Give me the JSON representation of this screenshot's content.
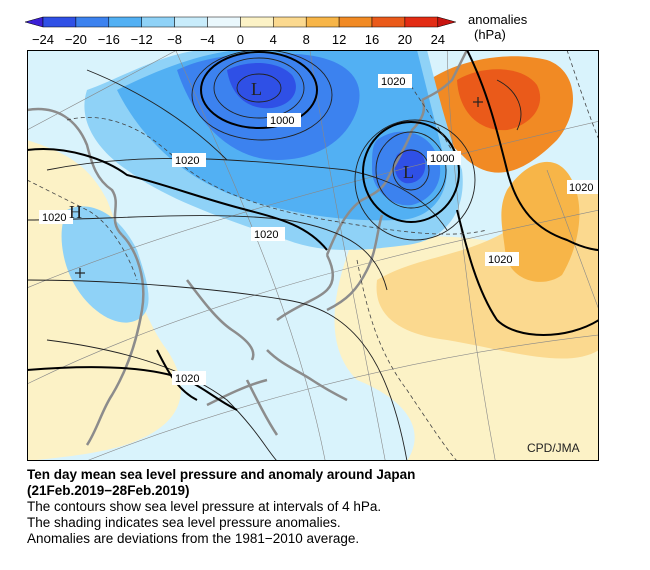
{
  "colorbar": {
    "unit_line1": "anomalies",
    "unit_line2": "(hPa)",
    "ticks": [
      "−24",
      "−20",
      "−16",
      "−12",
      "−8",
      "−4",
      "0",
      "4",
      "8",
      "12",
      "16",
      "20",
      "24"
    ],
    "colors": [
      "#3b1fd6",
      "#2f50e6",
      "#3c82ef",
      "#52b0f3",
      "#8fd2f7",
      "#c8ecfb",
      "#eaf8fd",
      "#fcf2c6",
      "#fbd98f",
      "#f7b548",
      "#f18a24",
      "#ea5a1a",
      "#e32c14",
      "#c81410"
    ]
  },
  "map": {
    "pressure_labels": [
      "1000",
      "1000",
      "1020",
      "1020",
      "1020",
      "1020",
      "1020",
      "1020",
      "1020"
    ],
    "centers": {
      "low1": "L",
      "low2": "L",
      "high": "H"
    },
    "credit": "CPD/JMA",
    "colors": {
      "neg_strong": "#2f50e6",
      "neg_mid": "#3c82ef",
      "neg_light": "#52b0f3",
      "neg_pale": "#8fd2f7",
      "neutral_cool": "#d9f3fc",
      "neutral_warm": "#fcf2c6",
      "pos_light": "#fbd98f",
      "pos_mid": "#f7b548",
      "pos_strong": "#f18a24",
      "pos_peak": "#ea5a1a",
      "land": "#8c8c8c"
    }
  },
  "caption": {
    "title_line1": "Ten day mean sea level pressure and anomaly around Japan",
    "title_line2": "(21Feb.2019−28Feb.2019)",
    "line1": "The contours show sea level pressure at intervals of 4 hPa.",
    "line2": "The shading indicates sea level pressure anomalies.",
    "line3": "Anomalies are deviations from the 1981−2010 average."
  }
}
